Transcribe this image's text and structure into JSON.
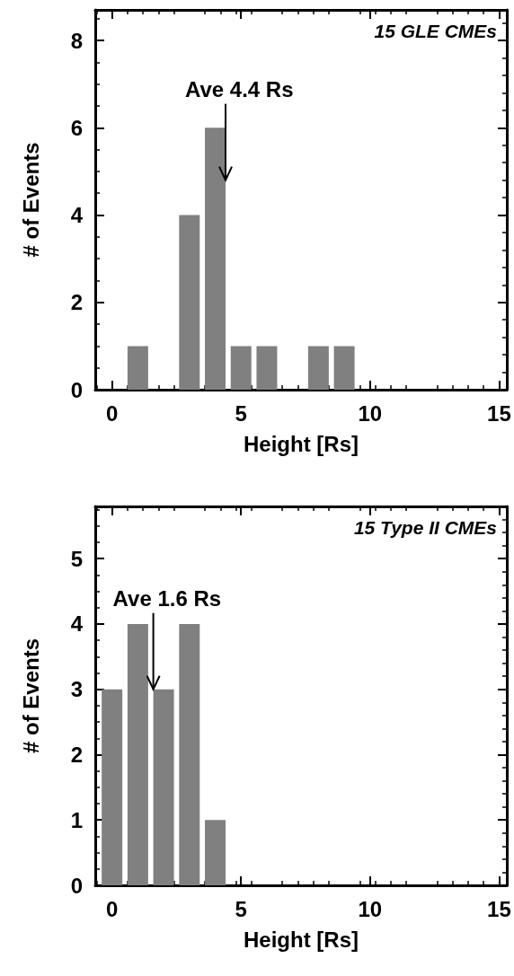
{
  "chart_data": [
    {
      "type": "histogram",
      "title": "15 GLE CMEs",
      "xlabel": "Height [Rs]",
      "ylabel": "# of Events",
      "color": "#808080",
      "bins": [
        -0.5,
        0.5,
        1.5,
        2.5,
        3.5,
        4.5,
        5.5,
        6.5,
        7.5,
        8.5,
        9.5
      ],
      "values": [
        0,
        1,
        0,
        4,
        6,
        1,
        1,
        0,
        1,
        1
      ],
      "xlim": [
        -0.65,
        15.3
      ],
      "xticks": [
        0,
        5,
        10,
        15
      ],
      "ylim": [
        0,
        8.7
      ],
      "yticks": [
        0,
        2,
        4,
        6,
        8
      ],
      "grid": false,
      "annotations": [
        {
          "text": "Ave 4.4 Rs",
          "x": 4.4,
          "y": 4.8
        }
      ]
    },
    {
      "type": "histogram",
      "title": "15 Type II CMEs",
      "xlabel": "Height [Rs]",
      "ylabel": "# of Events",
      "color": "#808080",
      "bins": [
        -0.5,
        0.5,
        1.5,
        2.5,
        3.5,
        4.5
      ],
      "values": [
        3,
        4,
        3,
        4,
        1
      ],
      "xlim": [
        -0.65,
        15.3
      ],
      "xticks": [
        0,
        5,
        10,
        15
      ],
      "ylim": [
        0,
        5.8
      ],
      "yticks": [
        0,
        1,
        2,
        3,
        4,
        5
      ],
      "grid": false,
      "annotations": [
        {
          "text": "Ave 1.6 Rs",
          "x": 1.6,
          "y": 3
        }
      ]
    }
  ]
}
